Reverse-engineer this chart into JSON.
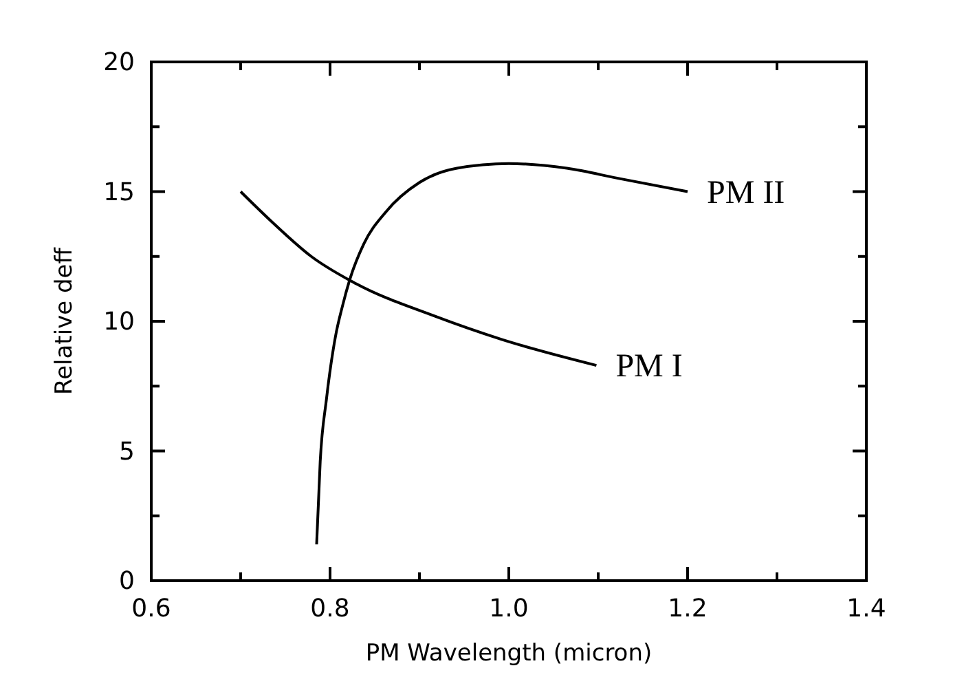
{
  "chart_data": {
    "type": "line",
    "xlabel": "PM Wavelength (micron)",
    "ylabel": "Relative deff",
    "xlim": [
      0.6,
      1.4
    ],
    "ylim": [
      0,
      20
    ],
    "xticks": [
      {
        "value": 0.6,
        "label": "0.6"
      },
      {
        "value": 0.7,
        "label": null
      },
      {
        "value": 0.8,
        "label": "0.8"
      },
      {
        "value": 0.9,
        "label": null
      },
      {
        "value": 1.0,
        "label": "1.0"
      },
      {
        "value": 1.1,
        "label": null
      },
      {
        "value": 1.2,
        "label": "1.2"
      },
      {
        "value": 1.3,
        "label": null
      },
      {
        "value": 1.4,
        "label": "1.4"
      }
    ],
    "yticks": [
      0,
      {
        "value": 2.5,
        "label": null
      },
      5,
      {
        "value": 7.5,
        "label": null
      },
      10,
      {
        "value": 12.5,
        "label": null
      },
      15,
      {
        "value": 17.5,
        "label": null
      },
      20
    ],
    "grid": false,
    "marker": "none",
    "line_style": "solid",
    "series": [
      {
        "name": "PM I",
        "color": "#000000",
        "x": [
          0.7,
          0.736,
          0.779,
          0.829,
          0.917,
          0.992,
          1.098
        ],
        "values": [
          15,
          13.8,
          12.5,
          11.45,
          10.2,
          9.3,
          8.3
        ]
      },
      {
        "name": "PM II",
        "color": "#000000",
        "x": [
          0.785,
          0.789,
          0.796,
          0.806,
          0.814,
          0.822,
          0.838,
          0.862,
          0.9,
          0.942,
          1.0,
          1.065,
          1.124,
          1.2
        ],
        "values": [
          1.4,
          4.6,
          7.0,
          9.4,
          10.6,
          11.6,
          13.0,
          14.2,
          15.35,
          15.9,
          16.08,
          15.9,
          15.5,
          15.0
        ]
      }
    ]
  }
}
